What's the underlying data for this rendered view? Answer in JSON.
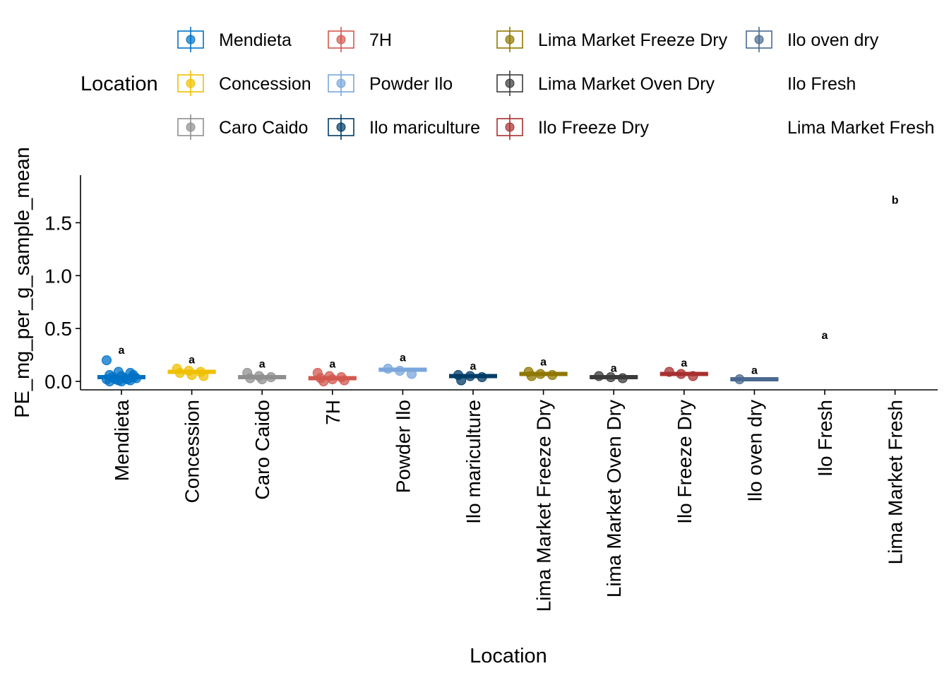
{
  "chart_data": {
    "type": "scatter",
    "xlabel": "Location",
    "ylabel": "PE_mg_per_g_sample_mean",
    "ylim": [
      -0.08,
      1.95
    ],
    "yticks": [
      0.0,
      0.5,
      1.0,
      1.5
    ],
    "ytick_labels": [
      "0.0",
      "0.5",
      "1.0",
      "1.5"
    ],
    "legend": {
      "title": "Location",
      "position": "top"
    },
    "grid": false,
    "categories": [
      "Mendieta",
      "Concession",
      "Caro Caido",
      "7H",
      "Powder Ilo",
      "Ilo mariculture",
      "Lima Market Freeze Dry",
      "Lima Market Oven Dry",
      "Ilo Freeze Dry",
      "Ilo oven dry",
      "Ilo Fresh",
      "Lima Market Fresh"
    ],
    "series": [
      {
        "name": "Mendieta",
        "color": "#0072C6",
        "mean": 0.04,
        "se": 0.008,
        "points": [
          0.2,
          0.09,
          0.08,
          0.06,
          0.05,
          0.04,
          0.04,
          0.03,
          0.03,
          0.02,
          0.02,
          0.02,
          0.01,
          0.01,
          0.0,
          0.0,
          0.06
        ],
        "label": "a",
        "label_y": 0.3
      },
      {
        "name": "Concession",
        "color": "#EFC000",
        "mean": 0.09,
        "se": 0.01,
        "points": [
          0.12,
          0.1,
          0.09,
          0.08,
          0.06,
          0.05
        ],
        "label": "a",
        "label_y": 0.21
      },
      {
        "name": "Caro Caido",
        "color": "#8F8F8F",
        "mean": 0.04,
        "se": 0.006,
        "points": [
          0.08,
          0.05,
          0.04,
          0.03,
          0.02
        ],
        "label": "a",
        "label_y": 0.17
      },
      {
        "name": "7H",
        "color": "#D2584F",
        "mean": 0.03,
        "se": 0.01,
        "points": [
          0.08,
          0.05,
          0.04,
          0.03,
          0.02,
          0.01,
          0.0
        ],
        "label": "a",
        "label_y": 0.17
      },
      {
        "name": "Powder Ilo",
        "color": "#7AA6DC",
        "mean": 0.11,
        "se": 0.01,
        "points": [
          0.12,
          0.1,
          0.07
        ],
        "label": "a",
        "label_y": 0.23
      },
      {
        "name": "Ilo mariculture",
        "color": "#003C67",
        "mean": 0.05,
        "se": 0.005,
        "points": [
          0.06,
          0.05,
          0.04,
          0.01
        ],
        "label": "a",
        "label_y": 0.15
      },
      {
        "name": "Lima Market Freeze Dry",
        "color": "#8F7700",
        "mean": 0.07,
        "se": 0.008,
        "points": [
          0.09,
          0.07,
          0.06,
          0.05
        ],
        "label": "a",
        "label_y": 0.19
      },
      {
        "name": "Lima Market Oven Dry",
        "color": "#3B3B3B",
        "mean": 0.04,
        "se": 0.004,
        "points": [
          0.05,
          0.04,
          0.03
        ],
        "label": "a",
        "label_y": 0.13
      },
      {
        "name": "Ilo Freeze Dry",
        "color": "#A73030",
        "mean": 0.07,
        "se": 0.006,
        "points": [
          0.09,
          0.07,
          0.05
        ],
        "label": "a",
        "label_y": 0.18
      },
      {
        "name": "Ilo oven dry",
        "color": "#4A6990",
        "mean": 0.02,
        "se": 0.002,
        "points": [
          0.02
        ],
        "label": "a",
        "label_y": 0.11
      },
      {
        "name": "Ilo Fresh",
        "color": null,
        "mean": null,
        "se": null,
        "points": [],
        "label": "a",
        "label_y": 0.44
      },
      {
        "name": "Lima Market Fresh",
        "color": null,
        "mean": null,
        "se": null,
        "points": [],
        "label": "b",
        "label_y": 1.72
      }
    ]
  }
}
